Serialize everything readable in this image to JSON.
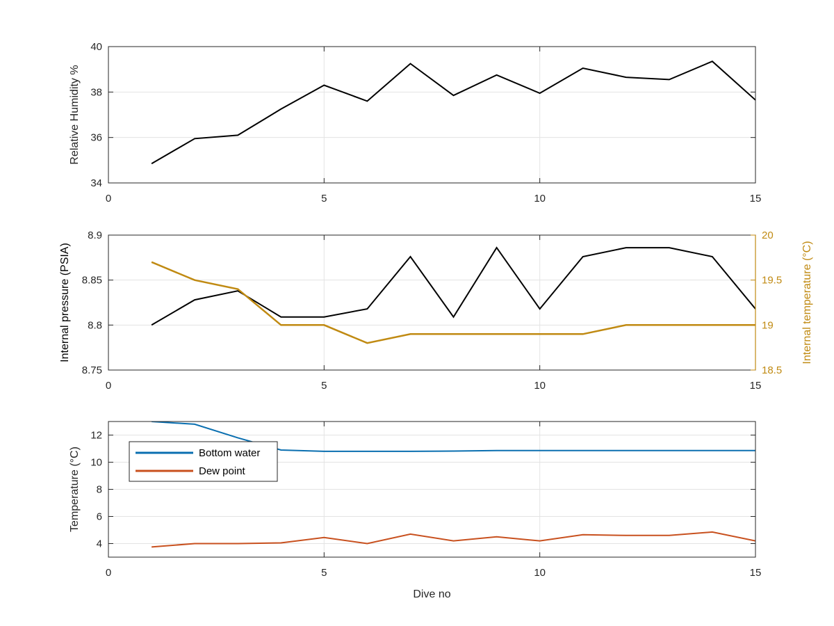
{
  "chart_data": [
    {
      "type": "line",
      "xlabel": "",
      "ylabel": "Relative Humidity %",
      "xlim": [
        0,
        15
      ],
      "ylim": [
        34,
        40
      ],
      "xticks": [
        "0",
        "5",
        "10",
        "15"
      ],
      "yticks": [
        "34",
        "36",
        "38",
        "40"
      ],
      "grid": true,
      "x": [
        1,
        2,
        3,
        4,
        5,
        6,
        7,
        8,
        9,
        10,
        11,
        12,
        13,
        14,
        15
      ],
      "series": [
        {
          "values": [
            34.85,
            35.95,
            36.1,
            37.25,
            38.3,
            37.6,
            39.25,
            37.85,
            38.75,
            37.95,
            39.05,
            38.65,
            38.55,
            39.35,
            37.65
          ],
          "color": "#000000"
        }
      ]
    },
    {
      "type": "line",
      "xlabel": "",
      "ylabel": "Internal pressure (PSIA)",
      "ylabel_right": "Internal temperature (°C)",
      "xlim": [
        0,
        15
      ],
      "ylim": [
        8.75,
        8.9
      ],
      "ylim_right": [
        18.5,
        20
      ],
      "xticks": [
        "0",
        "5",
        "10",
        "15"
      ],
      "yticks": [
        "8.75",
        "8.8",
        "8.85",
        "8.9"
      ],
      "yticks_right": [
        "18.5",
        "19",
        "19.5",
        "20"
      ],
      "grid": true,
      "x": [
        1,
        2,
        3,
        4,
        5,
        6,
        7,
        8,
        9,
        10,
        11,
        12,
        13,
        14,
        15
      ],
      "series": [
        {
          "axis": "left",
          "values": [
            8.8,
            8.828,
            8.838,
            8.809,
            8.809,
            8.818,
            8.876,
            8.809,
            8.886,
            8.818,
            8.876,
            8.886,
            8.886,
            8.876,
            8.818
          ],
          "color": "#000000"
        },
        {
          "axis": "right",
          "values": [
            19.7,
            19.5,
            19.4,
            19.0,
            19.0,
            18.8,
            18.9,
            18.9,
            18.9,
            18.9,
            18.9,
            19.0,
            19.0,
            19.0,
            19.0
          ],
          "color": "#c08a12"
        }
      ]
    },
    {
      "type": "line",
      "xlabel": "Dive no",
      "ylabel": "Temperature (°C)",
      "xlim": [
        0,
        15
      ],
      "ylim": [
        3,
        13
      ],
      "xticks": [
        "0",
        "5",
        "10",
        "15"
      ],
      "yticks": [
        "4",
        "6",
        "8",
        "10",
        "12"
      ],
      "grid": true,
      "legend": "top-left",
      "x": [
        1,
        2,
        3,
        4,
        5,
        6,
        7,
        8,
        9,
        10,
        11,
        12,
        13,
        14,
        15
      ],
      "series": [
        {
          "name": "Bottom water",
          "values": [
            13.0,
            12.8,
            11.8,
            10.9,
            10.8,
            10.8,
            10.8,
            10.82,
            10.86,
            10.86,
            10.86,
            10.86,
            10.86,
            10.86,
            10.86
          ],
          "color": "#0a6fb0"
        },
        {
          "name": "Dew point",
          "values": [
            3.75,
            4.0,
            4.0,
            4.05,
            4.45,
            4.0,
            4.7,
            4.2,
            4.5,
            4.2,
            4.65,
            4.6,
            4.6,
            4.85,
            4.2
          ],
          "color": "#c8501e"
        }
      ]
    }
  ]
}
